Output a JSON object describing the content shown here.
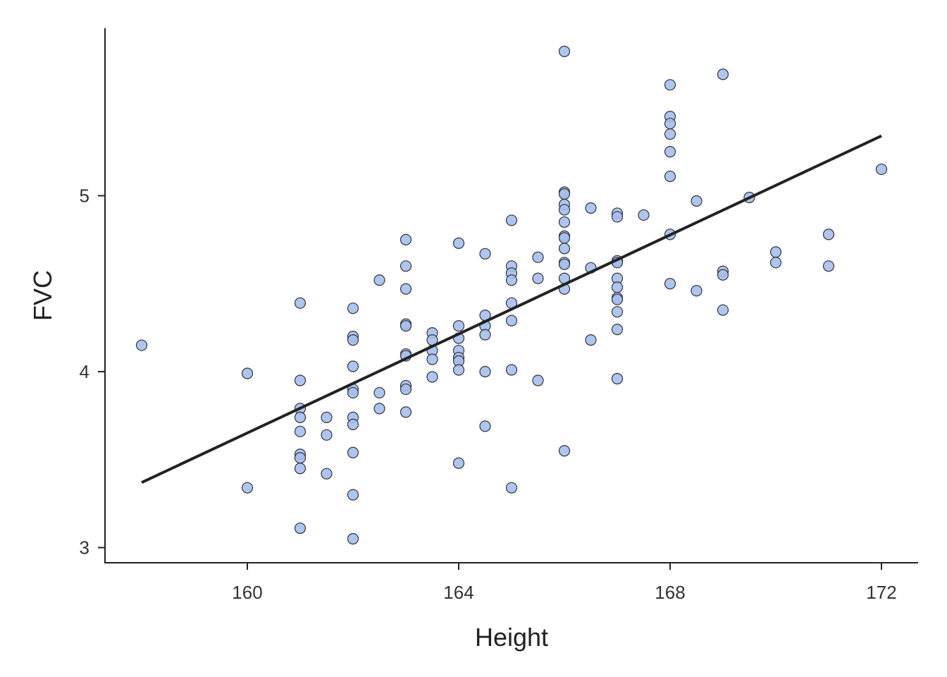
{
  "chart_data": {
    "type": "scatter",
    "title": "",
    "xlabel": "Height",
    "ylabel": "FVC",
    "xlim": [
      157.3,
      172.7
    ],
    "ylim": [
      2.91,
      5.95
    ],
    "xticks": [
      160,
      164,
      168,
      172
    ],
    "yticks": [
      3,
      4,
      5
    ],
    "xtick_labels": [
      "160",
      "164",
      "168",
      "172"
    ],
    "ytick_labels": [
      "3",
      "4",
      "5"
    ],
    "grid": false,
    "point_color": "#a4bff0",
    "point_edge": "#333333",
    "line_color": "#222222",
    "regression_line": {
      "x": [
        158,
        172
      ],
      "y": [
        3.37,
        5.34
      ]
    },
    "points": [
      [
        158,
        4.15
      ],
      [
        160,
        3.99
      ],
      [
        160,
        3.34
      ],
      [
        161,
        4.39
      ],
      [
        161,
        3.95
      ],
      [
        161,
        3.79
      ],
      [
        161,
        3.74
      ],
      [
        161,
        3.66
      ],
      [
        161,
        3.53
      ],
      [
        161,
        3.51
      ],
      [
        161,
        3.45
      ],
      [
        161,
        3.11
      ],
      [
        161.5,
        3.74
      ],
      [
        161.5,
        3.64
      ],
      [
        161.5,
        3.42
      ],
      [
        162,
        4.36
      ],
      [
        162,
        4.2
      ],
      [
        162,
        4.18
      ],
      [
        162,
        4.03
      ],
      [
        162,
        3.9
      ],
      [
        162,
        3.88
      ],
      [
        162,
        3.74
      ],
      [
        162,
        3.7
      ],
      [
        162,
        3.54
      ],
      [
        162,
        3.3
      ],
      [
        162,
        3.05
      ],
      [
        162.5,
        4.52
      ],
      [
        162.5,
        3.88
      ],
      [
        162.5,
        3.79
      ],
      [
        163,
        4.75
      ],
      [
        163,
        4.6
      ],
      [
        163,
        4.47
      ],
      [
        163,
        4.27
      ],
      [
        163,
        4.26
      ],
      [
        163,
        4.1
      ],
      [
        163,
        4.09
      ],
      [
        163,
        3.92
      ],
      [
        163,
        3.9
      ],
      [
        163,
        3.77
      ],
      [
        163.5,
        4.22
      ],
      [
        163.5,
        4.18
      ],
      [
        163.5,
        4.12
      ],
      [
        163.5,
        4.07
      ],
      [
        163.5,
        3.97
      ],
      [
        164,
        4.73
      ],
      [
        164,
        4.26
      ],
      [
        164,
        4.19
      ],
      [
        164,
        4.12
      ],
      [
        164,
        4.08
      ],
      [
        164,
        4.06
      ],
      [
        164,
        4.01
      ],
      [
        164,
        3.48
      ],
      [
        164.5,
        4.67
      ],
      [
        164.5,
        4.32
      ],
      [
        164.5,
        4.26
      ],
      [
        164.5,
        4.21
      ],
      [
        164.5,
        4.0
      ],
      [
        164.5,
        3.69
      ],
      [
        165,
        4.86
      ],
      [
        165,
        4.6
      ],
      [
        165,
        4.56
      ],
      [
        165,
        4.52
      ],
      [
        165,
        4.39
      ],
      [
        165,
        4.29
      ],
      [
        165,
        4.01
      ],
      [
        165,
        3.34
      ],
      [
        165.5,
        4.65
      ],
      [
        165.5,
        4.53
      ],
      [
        165.5,
        3.95
      ],
      [
        166,
        5.82
      ],
      [
        166,
        5.02
      ],
      [
        166,
        5.01
      ],
      [
        166,
        4.95
      ],
      [
        166,
        4.92
      ],
      [
        166,
        4.85
      ],
      [
        166,
        4.77
      ],
      [
        166,
        4.76
      ],
      [
        166,
        4.7
      ],
      [
        166,
        4.62
      ],
      [
        166,
        4.61
      ],
      [
        166,
        4.53
      ],
      [
        166,
        4.47
      ],
      [
        166,
        3.55
      ],
      [
        166.5,
        4.93
      ],
      [
        166.5,
        4.59
      ],
      [
        166.5,
        4.18
      ],
      [
        167,
        4.9
      ],
      [
        167,
        4.88
      ],
      [
        167,
        4.63
      ],
      [
        167,
        4.62
      ],
      [
        167,
        4.53
      ],
      [
        167,
        4.48
      ],
      [
        167,
        4.42
      ],
      [
        167,
        4.41
      ],
      [
        167,
        4.34
      ],
      [
        167,
        4.24
      ],
      [
        167,
        3.96
      ],
      [
        167.5,
        4.89
      ],
      [
        168,
        5.63
      ],
      [
        168,
        5.45
      ],
      [
        168,
        5.41
      ],
      [
        168,
        5.35
      ],
      [
        168,
        5.25
      ],
      [
        168,
        5.11
      ],
      [
        168,
        4.78
      ],
      [
        168,
        4.5
      ],
      [
        168.5,
        4.97
      ],
      [
        168.5,
        4.46
      ],
      [
        169,
        5.69
      ],
      [
        169,
        4.57
      ],
      [
        169,
        4.55
      ],
      [
        169,
        4.35
      ],
      [
        169.5,
        4.99
      ],
      [
        170,
        4.68
      ],
      [
        170,
        4.62
      ],
      [
        171,
        4.78
      ],
      [
        171,
        4.6
      ],
      [
        172,
        5.15
      ]
    ]
  }
}
